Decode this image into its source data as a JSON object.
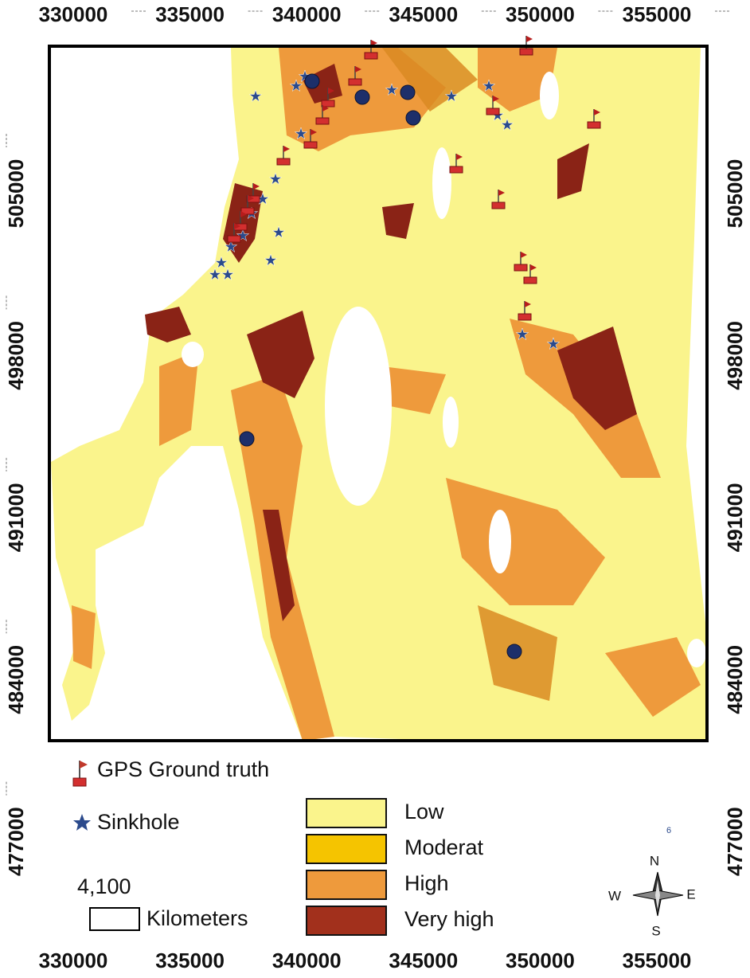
{
  "x_ticks": [
    330000,
    335000,
    340000,
    345000,
    350000,
    355000
  ],
  "y_ticks": [
    505000,
    498000,
    491000,
    484000,
    477000
  ],
  "legend": {
    "points": [
      {
        "label": "GPS Ground truth"
      },
      {
        "label": "Sinkhole"
      }
    ],
    "classes": [
      {
        "label": "Low",
        "color": "#faf48c"
      },
      {
        "label": "Moderat",
        "color": "#f5c400"
      },
      {
        "label": "High",
        "color": "#ee9a3c"
      },
      {
        "label": "Very high",
        "color": "#a2301c"
      }
    ]
  },
  "scale_bar": {
    "value": "4,100",
    "unit": "Kilometers"
  },
  "compass": {
    "n": "N",
    "e": "E",
    "s": "S",
    "w": "W"
  },
  "corner_mark": "6"
}
